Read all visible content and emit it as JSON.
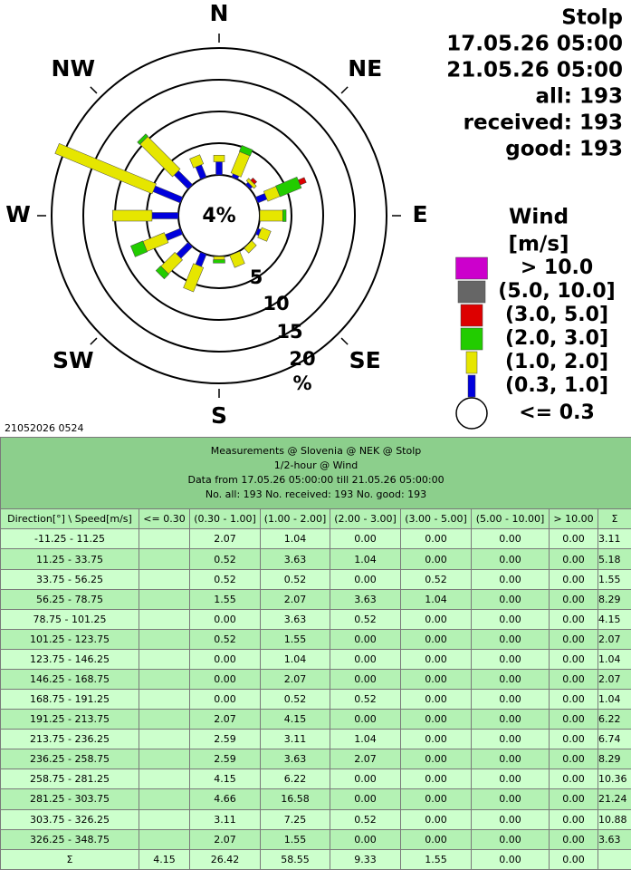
{
  "header": {
    "station": "Stolp",
    "from": "17.05.26 05:00",
    "till": "21.05.26 05:00",
    "all": "all: 193",
    "received": "received: 193",
    "good": "good: 193"
  },
  "rose": {
    "compass": [
      "N",
      "NE",
      "E",
      "SE",
      "S",
      "SW",
      "W",
      "NW"
    ],
    "center": "4%",
    "rings": [
      5,
      10,
      15,
      20
    ],
    "ring_unit": "%"
  },
  "legend": {
    "title": "Wind",
    "unit": "[m/s]",
    "classes": [
      {
        "label": "> 10.0",
        "color": "#cc00cc"
      },
      {
        "label": "(5.0, 10.0]",
        "color": "#666666"
      },
      {
        "label": "(3.0, 5.0]",
        "color": "#dd0000"
      },
      {
        "label": "(2.0, 3.0]",
        "color": "#22cc00"
      },
      {
        "label": "(1.0, 2.0]",
        "color": "#e6e600"
      },
      {
        "label": "(0.3, 1.0]",
        "color": "#0000dd"
      },
      {
        "label": "<= 0.3",
        "color": "#ffffff"
      }
    ]
  },
  "stamp": "21052026 0524",
  "table": {
    "caption": [
      "Measurements @ Slovenia @ NEK @ Stolp",
      "1/2-hour @ Wind",
      "Data from 17.05.26 05:00:00 till 21.05.26 05:00:00",
      "No. all: 193   No. received: 193   No. good: 193"
    ],
    "columns": [
      "Direction[°] \\ Speed[m/s]",
      "<= 0.30",
      "(0.30 - 1.00]",
      "(1.00 - 2.00]",
      "(2.00 - 3.00]",
      "(3.00 - 5.00]",
      "(5.00 - 10.00]",
      "> 10.00",
      "Σ"
    ],
    "rows": [
      [
        "-11.25 - 11.25",
        null,
        "2.07",
        "1.04",
        "0.00",
        "0.00",
        "0.00",
        "0.00",
        "3.11"
      ],
      [
        "11.25 - 33.75",
        null,
        "0.52",
        "3.63",
        "1.04",
        "0.00",
        "0.00",
        "0.00",
        "5.18"
      ],
      [
        "33.75 - 56.25",
        null,
        "0.52",
        "0.52",
        "0.00",
        "0.52",
        "0.00",
        "0.00",
        "1.55"
      ],
      [
        "56.25 - 78.75",
        null,
        "1.55",
        "2.07",
        "3.63",
        "1.04",
        "0.00",
        "0.00",
        "8.29"
      ],
      [
        "78.75 - 101.25",
        null,
        "0.00",
        "3.63",
        "0.52",
        "0.00",
        "0.00",
        "0.00",
        "4.15"
      ],
      [
        "101.25 - 123.75",
        null,
        "0.52",
        "1.55",
        "0.00",
        "0.00",
        "0.00",
        "0.00",
        "2.07"
      ],
      [
        "123.75 - 146.25",
        null,
        "0.00",
        "1.04",
        "0.00",
        "0.00",
        "0.00",
        "0.00",
        "1.04"
      ],
      [
        "146.25 - 168.75",
        null,
        "0.00",
        "2.07",
        "0.00",
        "0.00",
        "0.00",
        "0.00",
        "2.07"
      ],
      [
        "168.75 - 191.25",
        null,
        "0.00",
        "0.52",
        "0.52",
        "0.00",
        "0.00",
        "0.00",
        "1.04"
      ],
      [
        "191.25 - 213.75",
        null,
        "2.07",
        "4.15",
        "0.00",
        "0.00",
        "0.00",
        "0.00",
        "6.22"
      ],
      [
        "213.75 - 236.25",
        null,
        "2.59",
        "3.11",
        "1.04",
        "0.00",
        "0.00",
        "0.00",
        "6.74"
      ],
      [
        "236.25 - 258.75",
        null,
        "2.59",
        "3.63",
        "2.07",
        "0.00",
        "0.00",
        "0.00",
        "8.29"
      ],
      [
        "258.75 - 281.25",
        null,
        "4.15",
        "6.22",
        "0.00",
        "0.00",
        "0.00",
        "0.00",
        "10.36"
      ],
      [
        "281.25 - 303.75",
        null,
        "4.66",
        "16.58",
        "0.00",
        "0.00",
        "0.00",
        "0.00",
        "21.24"
      ],
      [
        "303.75 - 326.25",
        null,
        "3.11",
        "7.25",
        "0.52",
        "0.00",
        "0.00",
        "0.00",
        "10.88"
      ],
      [
        "326.25 - 348.75",
        null,
        "2.07",
        "1.55",
        "0.00",
        "0.00",
        "0.00",
        "0.00",
        "3.63"
      ]
    ],
    "total": [
      "Σ",
      "4.15",
      "26.42",
      "58.55",
      "9.33",
      "1.55",
      "0.00",
      "0.00",
      null
    ]
  }
}
